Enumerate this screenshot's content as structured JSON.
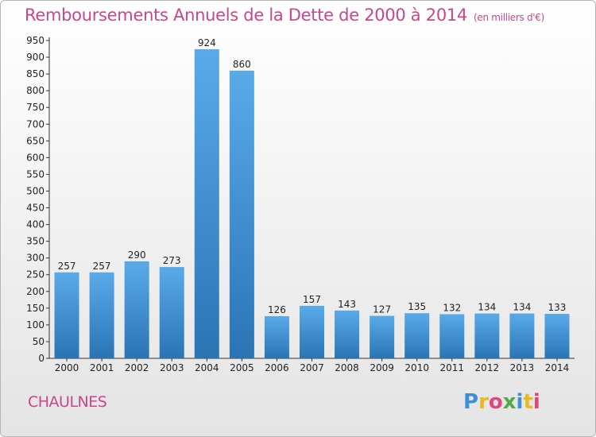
{
  "title": "Remboursements Annuels de la Dette de 2000 à 2014",
  "subtitle": "(en milliers d'€)",
  "commune": "CHAULNES",
  "logo": {
    "letters": [
      "P",
      "r",
      "o",
      "x",
      "i",
      "t",
      "i"
    ],
    "colors": [
      "#3d8fd6",
      "#e8b923",
      "#e0457b",
      "#53a946",
      "#3d8fd6",
      "#e8b923",
      "#e0457b"
    ]
  },
  "colors": {
    "bar_top": "#5aaaea",
    "bar_bottom": "#2a74b4",
    "axis": "#333333",
    "text_accent": "#c8468a"
  },
  "chart_data": {
    "type": "bar",
    "title": "Remboursements Annuels de la Dette de 2000 à 2014",
    "subtitle": "(en milliers d'€)",
    "categories": [
      "2000",
      "2001",
      "2002",
      "2003",
      "2004",
      "2005",
      "2006",
      "2007",
      "2008",
      "2009",
      "2010",
      "2011",
      "2012",
      "2013",
      "2014"
    ],
    "values": [
      257,
      257,
      290,
      273,
      924,
      860,
      126,
      157,
      143,
      127,
      135,
      132,
      134,
      134,
      133
    ],
    "ylim": [
      0,
      950
    ],
    "yticks": [
      0,
      50,
      100,
      150,
      200,
      250,
      300,
      350,
      400,
      450,
      500,
      550,
      600,
      650,
      700,
      750,
      800,
      850,
      900,
      950
    ],
    "xlabel": "",
    "ylabel": "",
    "grid": false,
    "legend": "none"
  }
}
